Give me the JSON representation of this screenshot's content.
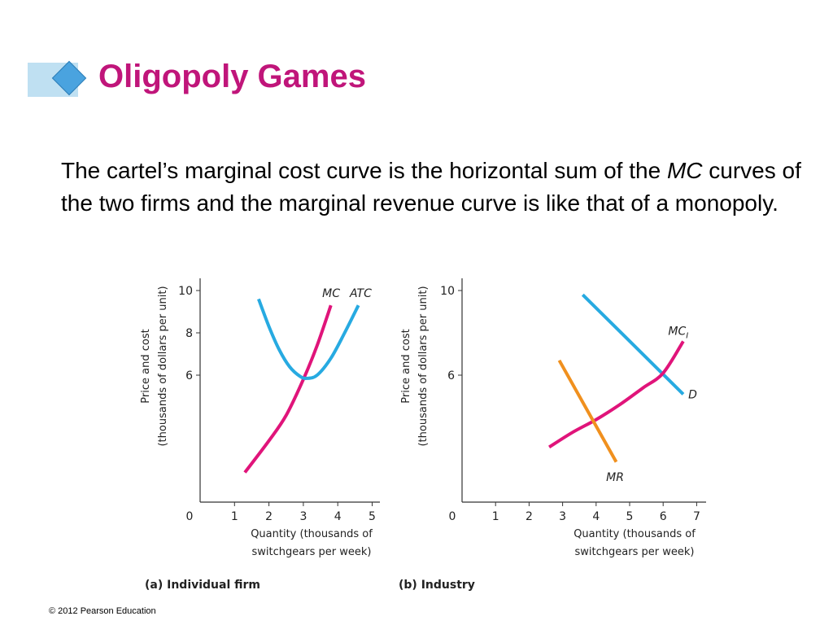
{
  "slide": {
    "title": "Oligopoly Games",
    "body_part1": "The cartel’s marginal cost curve is the horizontal sum of the ",
    "body_italic": "MC",
    "body_part2": " curves of the two firms and the marginal revenue curve is like that of a monopoly.",
    "footer": "© 2012 Pearson Education"
  },
  "colors": {
    "title": "#c0157a",
    "cyan": "#27aae1",
    "magenta": "#e0147a",
    "orange": "#f0901e"
  },
  "chart_data": [
    {
      "type": "line",
      "panel_label": "(a) Individual firm",
      "xlabel": "Quantity (thousands of switchgears per week)",
      "ylabel": "Price and cost (thousands of dollars per unit)",
      "xlim": [
        0,
        5.3
      ],
      "ylim": [
        0,
        10.2
      ],
      "xticks": [
        0,
        1,
        2,
        3,
        4,
        5
      ],
      "yticks": [
        6,
        8,
        10
      ],
      "y_zero_label": "0",
      "series": [
        {
          "name": "MC",
          "color": "#e0147a",
          "label_pos": [
            3.55,
            9.7
          ],
          "points": [
            [
              1.3,
              1.4
            ],
            [
              2.0,
              2.9
            ],
            [
              2.5,
              4.1
            ],
            [
              3.0,
              5.8
            ],
            [
              3.4,
              7.4
            ],
            [
              3.8,
              9.3
            ]
          ]
        },
        {
          "name": "ATC",
          "color": "#27aae1",
          "label_pos": [
            4.35,
            9.7
          ],
          "points": [
            [
              1.7,
              9.6
            ],
            [
              2.0,
              8.3
            ],
            [
              2.3,
              7.2
            ],
            [
              2.6,
              6.4
            ],
            [
              2.9,
              5.95
            ],
            [
              3.1,
              5.85
            ],
            [
              3.4,
              6.0
            ],
            [
              3.8,
              6.8
            ],
            [
              4.2,
              8.0
            ],
            [
              4.6,
              9.3
            ]
          ]
        }
      ]
    },
    {
      "type": "line",
      "panel_label": "(b) Industry",
      "xlabel": "Quantity (thousands of switchgears per week)",
      "ylabel": "Price and cost (thousands of dollars per unit)",
      "xlim": [
        0,
        7.3
      ],
      "ylim": [
        0,
        10.2
      ],
      "xticks": [
        0,
        1,
        2,
        3,
        4,
        5,
        6,
        7
      ],
      "yticks": [
        6,
        10
      ],
      "y_zero_label": "0",
      "series": [
        {
          "name": "D",
          "color": "#27aae1",
          "label_pos": [
            6.75,
            4.9
          ],
          "points": [
            [
              3.6,
              9.8
            ],
            [
              6.6,
              5.1
            ]
          ]
        },
        {
          "name": "MC",
          "subscript": "I",
          "color": "#e0147a",
          "label_pos": [
            6.15,
            7.9
          ],
          "points": [
            [
              2.6,
              2.6
            ],
            [
              3.3,
              3.3
            ],
            [
              4.0,
              3.9
            ],
            [
              4.7,
              4.6
            ],
            [
              5.4,
              5.4
            ],
            [
              6.0,
              6.1
            ],
            [
              6.6,
              7.6
            ]
          ]
        },
        {
          "name": "MR",
          "color": "#f0901e",
          "label_pos": [
            4.3,
            1.0
          ],
          "points": [
            [
              2.9,
              6.7
            ],
            [
              4.6,
              1.9
            ]
          ]
        }
      ]
    }
  ]
}
